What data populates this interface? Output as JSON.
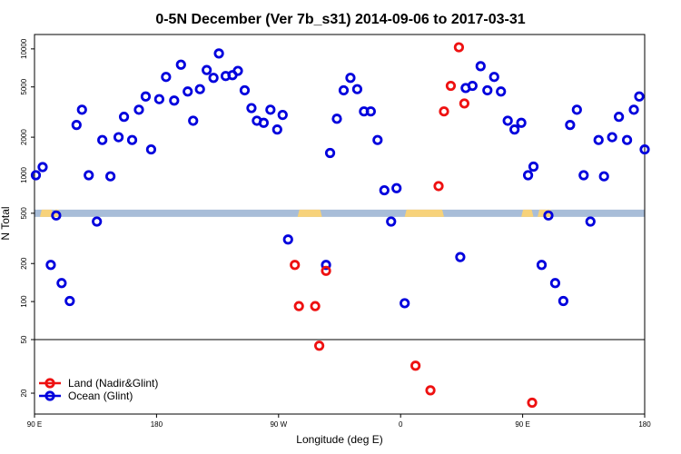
{
  "colors": {
    "land": "#ee1111",
    "ocean": "#0000dd",
    "band": "#a8bdd8",
    "land_fill": "#f7d27a",
    "ink": "#000000"
  },
  "chart_data": {
    "type": "scatter",
    "title": "0-5N December (Ver 7b_s31)   2014-09-06 to 2017-03-31",
    "xlabel": "Longitude (deg E)",
    "ylabel": "N Total",
    "xscale": "linear",
    "yscale": "log",
    "xlim": [
      90,
      540
    ],
    "y_upper_lim": [
      50,
      13000
    ],
    "y_lower_lim": [
      14,
      50
    ],
    "x_ticks": [
      {
        "value": 90,
        "label": "90 E"
      },
      {
        "value": 180,
        "label": "180"
      },
      {
        "value": 270,
        "label": "90 W"
      },
      {
        "value": 360,
        "label": "0"
      },
      {
        "value": 450,
        "label": "90 E"
      },
      {
        "value": 540,
        "label": "180"
      }
    ],
    "y_ticks_upper": [
      {
        "value": 10000,
        "label": "10000"
      },
      {
        "value": 5000,
        "label": "5000"
      },
      {
        "value": 2000,
        "label": "2000"
      },
      {
        "value": 1000,
        "label": "1000"
      },
      {
        "value": 500,
        "label": "500"
      },
      {
        "value": 200,
        "label": "200"
      },
      {
        "value": 100,
        "label": "100"
      },
      {
        "value": 50,
        "label": "50"
      }
    ],
    "y_ticks_lower": [
      {
        "value": 20,
        "label": "20"
      }
    ],
    "reference_band_value": 500,
    "legend": {
      "position": "bottom-left",
      "entries": [
        "Land (Nadir&Glint)",
        "Ocean (Glint)"
      ]
    },
    "series": [
      {
        "name": "Land (Nadir&Glint)",
        "color": "#ee1111",
        "points": [
          {
            "x": 282,
            "y": 195
          },
          {
            "x": 285,
            "y": 92
          },
          {
            "x": 297,
            "y": 92
          },
          {
            "x": 300,
            "y": 45
          },
          {
            "x": 305,
            "y": 175
          },
          {
            "x": 371,
            "y": 32
          },
          {
            "x": 382,
            "y": 21
          },
          {
            "x": 388,
            "y": 820
          },
          {
            "x": 392,
            "y": 3200
          },
          {
            "x": 397,
            "y": 5100
          },
          {
            "x": 403,
            "y": 10300
          },
          {
            "x": 407,
            "y": 3700
          },
          {
            "x": 457,
            "y": 17
          }
        ]
      },
      {
        "name": "Ocean (Glint)",
        "color": "#0000dd",
        "points": [
          {
            "x": 91,
            "y": 1000
          },
          {
            "x": 96,
            "y": 1160
          },
          {
            "x": 102,
            "y": 195
          },
          {
            "x": 106,
            "y": 480
          },
          {
            "x": 110,
            "y": 140
          },
          {
            "x": 116,
            "y": 101
          },
          {
            "x": 121,
            "y": 2500
          },
          {
            "x": 125,
            "y": 3300
          },
          {
            "x": 130,
            "y": 1000
          },
          {
            "x": 136,
            "y": 430
          },
          {
            "x": 140,
            "y": 1900
          },
          {
            "x": 146,
            "y": 980
          },
          {
            "x": 152,
            "y": 2000
          },
          {
            "x": 156,
            "y": 2900
          },
          {
            "x": 162,
            "y": 1900
          },
          {
            "x": 167,
            "y": 3300
          },
          {
            "x": 172,
            "y": 4200
          },
          {
            "x": 176,
            "y": 1600
          },
          {
            "x": 182,
            "y": 4000
          },
          {
            "x": 187,
            "y": 6000
          },
          {
            "x": 193,
            "y": 3900
          },
          {
            "x": 198,
            "y": 7500
          },
          {
            "x": 203,
            "y": 4600
          },
          {
            "x": 207,
            "y": 2700
          },
          {
            "x": 212,
            "y": 4800
          },
          {
            "x": 217,
            "y": 6800
          },
          {
            "x": 222,
            "y": 5900
          },
          {
            "x": 226,
            "y": 9200
          },
          {
            "x": 231,
            "y": 6100
          },
          {
            "x": 236,
            "y": 6200
          },
          {
            "x": 240,
            "y": 6700
          },
          {
            "x": 245,
            "y": 4700
          },
          {
            "x": 250,
            "y": 3400
          },
          {
            "x": 254,
            "y": 2700
          },
          {
            "x": 259,
            "y": 2600
          },
          {
            "x": 264,
            "y": 3300
          },
          {
            "x": 269,
            "y": 2300
          },
          {
            "x": 273,
            "y": 3000
          },
          {
            "x": 277,
            "y": 310
          },
          {
            "x": 305,
            "y": 195
          },
          {
            "x": 308,
            "y": 1500
          },
          {
            "x": 313,
            "y": 2800
          },
          {
            "x": 318,
            "y": 4700
          },
          {
            "x": 323,
            "y": 5900
          },
          {
            "x": 328,
            "y": 4800
          },
          {
            "x": 333,
            "y": 3200
          },
          {
            "x": 338,
            "y": 3200
          },
          {
            "x": 343,
            "y": 1900
          },
          {
            "x": 348,
            "y": 760
          },
          {
            "x": 353,
            "y": 430
          },
          {
            "x": 357,
            "y": 790
          },
          {
            "x": 363,
            "y": 97
          },
          {
            "x": 404,
            "y": 225
          },
          {
            "x": 408,
            "y": 4900
          },
          {
            "x": 413,
            "y": 5100
          },
          {
            "x": 419,
            "y": 7300
          },
          {
            "x": 424,
            "y": 4700
          },
          {
            "x": 429,
            "y": 6000
          },
          {
            "x": 434,
            "y": 4600
          },
          {
            "x": 439,
            "y": 2700
          },
          {
            "x": 444,
            "y": 2300
          },
          {
            "x": 449,
            "y": 2600
          },
          {
            "x": 454,
            "y": 1000
          },
          {
            "x": 458,
            "y": 1170
          },
          {
            "x": 464,
            "y": 195
          },
          {
            "x": 469,
            "y": 480
          },
          {
            "x": 474,
            "y": 140
          },
          {
            "x": 480,
            "y": 101
          },
          {
            "x": 485,
            "y": 2500
          },
          {
            "x": 490,
            "y": 3300
          },
          {
            "x": 495,
            "y": 1000
          },
          {
            "x": 500,
            "y": 430
          },
          {
            "x": 506,
            "y": 1900
          },
          {
            "x": 510,
            "y": 980
          },
          {
            "x": 516,
            "y": 2000
          },
          {
            "x": 521,
            "y": 2900
          },
          {
            "x": 527,
            "y": 1900
          },
          {
            "x": 532,
            "y": 3300
          },
          {
            "x": 536,
            "y": 4200
          },
          {
            "x": 540,
            "y": 1600
          }
        ]
      }
    ]
  }
}
